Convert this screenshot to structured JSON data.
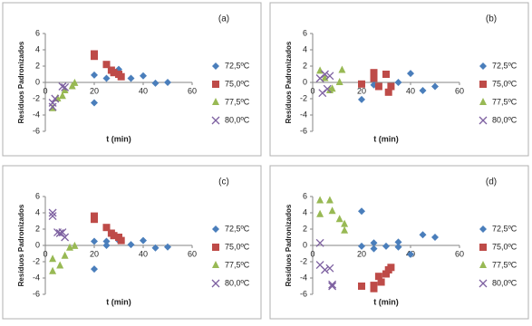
{
  "chart_data": [
    {
      "type": "scatter",
      "label": "(a)",
      "xlabel": "t (min)",
      "ylabel": "Resíduos Padronizados",
      "xlim": [
        0,
        60
      ],
      "ylim": [
        -6,
        6
      ],
      "xticks": [
        0,
        20,
        40,
        60
      ],
      "yticks": [
        -6,
        -4,
        -2,
        0,
        2,
        4,
        6
      ],
      "series": [
        {
          "name": "72,5ºC",
          "color": "#4a7ebb",
          "marker": "diamond",
          "x": [
            20,
            20,
            25,
            30,
            35,
            40,
            45,
            50
          ],
          "values": [
            -2.5,
            0.9,
            0.5,
            1.6,
            0.5,
            0.8,
            -0.1,
            0
          ]
        },
        {
          "name": "75,0ºC",
          "color": "#be4b48",
          "marker": "square",
          "x": [
            20,
            20,
            25,
            27,
            28,
            30,
            31
          ],
          "values": [
            3.5,
            3.2,
            2.2,
            1.5,
            1.2,
            1.0,
            0.7
          ]
        },
        {
          "name": "77,5ºC",
          "color": "#98b954",
          "marker": "triangle",
          "x": [
            3,
            5,
            7,
            8,
            11,
            12
          ],
          "values": [
            -3.2,
            -2.0,
            -1.7,
            -1.0,
            -0.5,
            -0.1
          ]
        },
        {
          "name": "80,0ºC",
          "color": "#7d60a0",
          "marker": "x",
          "x": [
            3,
            3,
            4,
            7,
            8
          ],
          "values": [
            -2.5,
            -3.0,
            -2.0,
            -0.5,
            -0.6
          ]
        }
      ]
    },
    {
      "type": "scatter",
      "label": "(b)",
      "xlabel": "t (min)",
      "ylabel": "Resíduos Padronizados",
      "xlim": [
        0,
        60
      ],
      "ylim": [
        -6,
        6
      ],
      "xticks": [
        0,
        20,
        40,
        60
      ],
      "yticks": [
        -6,
        -4,
        -2,
        0,
        2,
        4,
        6
      ],
      "series": [
        {
          "name": "72,5ºC",
          "color": "#4a7ebb",
          "marker": "diamond",
          "x": [
            20,
            25,
            25,
            30,
            35,
            40,
            45,
            50
          ],
          "values": [
            -2.1,
            0.3,
            -0.3,
            1.0,
            0,
            1.1,
            -1.0,
            -0.5
          ]
        },
        {
          "name": "75,0ºC",
          "color": "#be4b48",
          "marker": "square",
          "x": [
            20,
            25,
            25,
            27,
            30,
            31,
            32
          ],
          "values": [
            -0.2,
            1.2,
            0.5,
            -0.5,
            1.0,
            -1.2,
            -0.5
          ]
        },
        {
          "name": "77,5ºC",
          "color": "#98b954",
          "marker": "triangle",
          "x": [
            3,
            5,
            7,
            8,
            11,
            12
          ],
          "values": [
            1.4,
            0.5,
            -1.0,
            -0.8,
            0,
            1.5
          ]
        },
        {
          "name": "80,0ºC",
          "color": "#7d60a0",
          "marker": "x",
          "x": [
            3,
            4,
            5,
            6,
            7
          ],
          "values": [
            0.5,
            -1.3,
            1.0,
            -0.8,
            0.8
          ]
        }
      ]
    },
    {
      "type": "scatter",
      "label": "(c)",
      "xlabel": "t (min)",
      "ylabel": "Resíduos Padronizados",
      "xlim": [
        0,
        60
      ],
      "ylim": [
        -6,
        6
      ],
      "xticks": [
        0,
        20,
        40,
        60
      ],
      "yticks": [
        -6,
        -4,
        -2,
        0,
        2,
        4,
        6
      ],
      "series": [
        {
          "name": "72,5ºC",
          "color": "#4a7ebb",
          "marker": "diamond",
          "x": [
            20,
            20,
            25,
            25,
            30,
            35,
            40,
            45,
            50
          ],
          "values": [
            -2.9,
            0.5,
            0.5,
            0,
            0.6,
            0.1,
            0.6,
            -0.3,
            -0.2
          ]
        },
        {
          "name": "75,0ºC",
          "color": "#be4b48",
          "marker": "square",
          "x": [
            20,
            20,
            25,
            27,
            28,
            30,
            31
          ],
          "values": [
            3.6,
            3.2,
            2.2,
            1.5,
            1.2,
            1.0,
            0.6
          ]
        },
        {
          "name": "77,5ºC",
          "color": "#98b954",
          "marker": "triangle",
          "x": [
            3,
            3,
            6,
            8,
            10,
            12
          ],
          "values": [
            -1.7,
            -3.2,
            -2.5,
            -1.3,
            -0.3,
            -0.1
          ]
        },
        {
          "name": "80,0ºC",
          "color": "#7d60a0",
          "marker": "x",
          "x": [
            3,
            3,
            5,
            6,
            7,
            8
          ],
          "values": [
            4.0,
            3.6,
            1.6,
            1.5,
            1.6,
            1.0
          ]
        }
      ]
    },
    {
      "type": "scatter",
      "label": "(d)",
      "xlabel": "t (min)",
      "ylabel": "Resíduos Padronizados",
      "xlim": [
        0,
        60
      ],
      "ylim": [
        -6,
        6
      ],
      "xticks": [
        0,
        20,
        40,
        60
      ],
      "yticks": [
        -6,
        -4,
        -2,
        0,
        2,
        4,
        6
      ],
      "series": [
        {
          "name": "72,5ºC",
          "color": "#4a7ebb",
          "marker": "diamond",
          "x": [
            20,
            20,
            25,
            25,
            30,
            35,
            35,
            40,
            45,
            50
          ],
          "values": [
            4.2,
            -0.1,
            0.3,
            -0.4,
            -0.1,
            0.4,
            -0.2,
            -1.1,
            1.3,
            1.0
          ]
        },
        {
          "name": "75,0ºC",
          "color": "#be4b48",
          "marker": "square",
          "x": [
            20,
            25,
            25,
            27,
            28,
            30,
            31,
            32
          ],
          "values": [
            -5.0,
            -5.3,
            -4.9,
            -3.8,
            -4.5,
            -3.5,
            -3.0,
            -2.7
          ]
        },
        {
          "name": "77,5ºC",
          "color": "#98b954",
          "marker": "triangle",
          "x": [
            3,
            3,
            7,
            8,
            11,
            13,
            13
          ],
          "values": [
            5.5,
            3.8,
            5.5,
            4.2,
            3.2,
            2.6,
            1.8
          ]
        },
        {
          "name": "80,0ºC",
          "color": "#7d60a0",
          "marker": "x",
          "x": [
            3,
            3,
            5,
            7,
            8,
            8
          ],
          "values": [
            0.3,
            -2.4,
            -3.0,
            -2.8,
            -4.8,
            -5.0
          ]
        }
      ]
    }
  ]
}
